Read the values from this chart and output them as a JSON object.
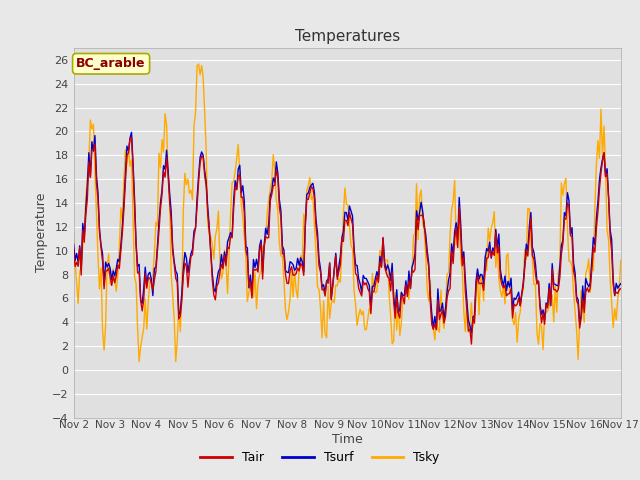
{
  "title": "Temperatures",
  "xlabel": "Time",
  "ylabel": "Temperature",
  "ylim": [
    -4,
    27
  ],
  "yticks": [
    -4,
    -2,
    0,
    2,
    4,
    6,
    8,
    10,
    12,
    14,
    16,
    18,
    20,
    22,
    24,
    26
  ],
  "x_tick_labels": [
    "Nov 2",
    "Nov 3",
    "Nov 4",
    "Nov 5",
    "Nov 6",
    "Nov 7",
    "Nov 8",
    "Nov 9",
    "Nov 10",
    "Nov 11",
    "Nov 12",
    "Nov 13",
    "Nov 14",
    "Nov 15",
    "Nov 16",
    "Nov 17"
  ],
  "fig_bg_color": "#e8e8e8",
  "plot_bg_color": "#e0e0e0",
  "grid_color": "#ffffff",
  "legend_label": "BC_arable",
  "legend_text_color": "#8b0000",
  "legend_bg": "#ffffcc",
  "legend_border": "#aaaa00",
  "line_tair_color": "#cc0000",
  "line_tsurf_color": "#0000cc",
  "line_tsky_color": "#ffaa00",
  "line_width": 1.0,
  "n_days": 15
}
